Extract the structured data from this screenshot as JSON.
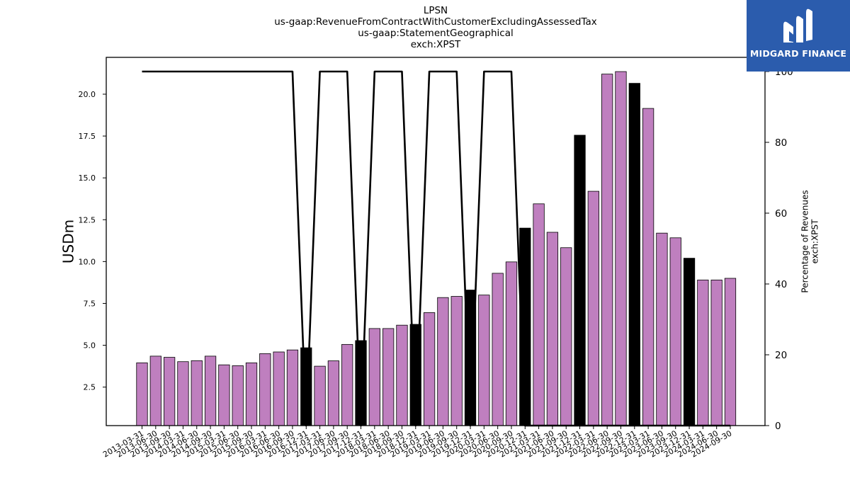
{
  "title_lines": [
    "LPSN",
    "us-gaap:RevenueFromContractWithCustomerExcludingAssessedTax",
    "us-gaap:StatementGeographical",
    "exch:XPST"
  ],
  "logo": {
    "text": "MIDGARD FINANCE",
    "icon": "midgard-m-icon"
  },
  "colors": {
    "bar": "#bf7fbf",
    "highlight_bar": "#000000",
    "line": "#000000",
    "logo_bg": "#2b5cad"
  },
  "chart_data": {
    "type": "bar",
    "categories": [
      "2013-03-31",
      "2013-06-30",
      "2013-09-30",
      "2014-03-31",
      "2014-06-30",
      "2014-09-30",
      "2015-03-31",
      "2015-06-30",
      "2015-09-30",
      "2016-03-31",
      "2016-06-30",
      "2016-09-30",
      "2016-12-31",
      "2017-03-31",
      "2017-06-30",
      "2017-09-30",
      "2017-12-31",
      "2018-03-31",
      "2018-06-30",
      "2018-09-30",
      "2018-12-31",
      "2019-03-31",
      "2019-06-30",
      "2019-09-30",
      "2019-12-31",
      "2020-03-31",
      "2020-06-30",
      "2020-09-30",
      "2020-12-31",
      "2021-03-31",
      "2021-06-30",
      "2021-09-30",
      "2021-12-31",
      "2022-03-31",
      "2022-06-30",
      "2022-09-30",
      "2022-12-31",
      "2023-03-31",
      "2023-06-30",
      "2023-09-30",
      "2023-12-31",
      "2024-03-31",
      "2024-06-30",
      "2024-09-30"
    ],
    "values": [
      3.95,
      4.35,
      4.28,
      4.02,
      4.08,
      4.35,
      3.83,
      3.78,
      3.95,
      4.5,
      4.6,
      4.72,
      4.85,
      3.75,
      4.07,
      5.05,
      5.28,
      6.0,
      6.0,
      6.2,
      6.25,
      6.95,
      7.85,
      7.92,
      8.3,
      8.0,
      9.3,
      9.98,
      12.0,
      13.45,
      11.75,
      10.83,
      17.55,
      14.2,
      21.2,
      21.35,
      20.65,
      19.15,
      11.7,
      11.42,
      10.2,
      8.9,
      8.9,
      9.0
    ],
    "highlighted": [
      false,
      false,
      false,
      false,
      false,
      false,
      false,
      false,
      false,
      false,
      false,
      false,
      true,
      false,
      false,
      false,
      true,
      false,
      false,
      false,
      true,
      false,
      false,
      false,
      true,
      false,
      false,
      false,
      true,
      false,
      false,
      false,
      true,
      false,
      false,
      false,
      true,
      false,
      false,
      false,
      true,
      false,
      false,
      false
    ],
    "series": [
      {
        "values": [
          100,
          100,
          100,
          100,
          100,
          100,
          100,
          100,
          100,
          100,
          100,
          100,
          0,
          100,
          100,
          100,
          0,
          100,
          100,
          100,
          0,
          100,
          100,
          100,
          0,
          100,
          100,
          100,
          0,
          0,
          0,
          0,
          0,
          0,
          0,
          0,
          0,
          0,
          0,
          0,
          0,
          0,
          0,
          0
        ]
      }
    ],
    "ylabel": "USDm",
    "ylabel_right": [
      "Percentage of Revenues",
      "exch:XPST"
    ],
    "ylim": [
      0.2,
      22.2
    ],
    "ylim_right": [
      0,
      104
    ],
    "yticks": [
      2.5,
      5.0,
      7.5,
      10.0,
      12.5,
      15.0,
      17.5,
      20.0
    ],
    "yticks_right": [
      0,
      20,
      40,
      60,
      80,
      100
    ],
    "grid": false
  }
}
